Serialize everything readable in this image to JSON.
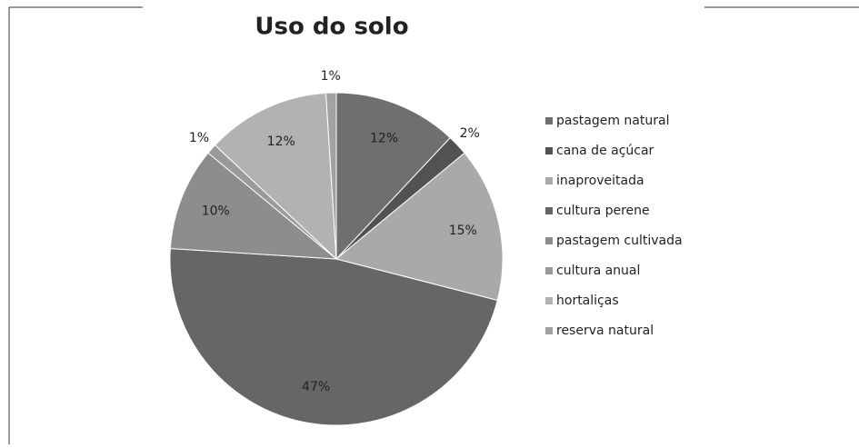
{
  "chart_data": {
    "type": "pie",
    "title": "Uso do solo",
    "categories": [
      "pastagem natural",
      "cana de açúcar",
      "inaproveitada",
      "cultura perene",
      "pastagem cultivada",
      "cultura anual",
      "hortaliças",
      "reserva natural"
    ],
    "values": [
      12,
      2,
      15,
      47,
      10,
      1,
      12,
      1
    ],
    "value_labels": [
      "12%",
      "2%",
      "15%",
      "47%",
      "10%",
      "1%",
      "12%",
      "1%"
    ],
    "colors": [
      "#6f6f6f",
      "#525252",
      "#a9a9a9",
      "#666666",
      "#8d8d8d",
      "#9a9a9a",
      "#b2b2b2",
      "#a2a2a2"
    ],
    "legend": "right"
  }
}
